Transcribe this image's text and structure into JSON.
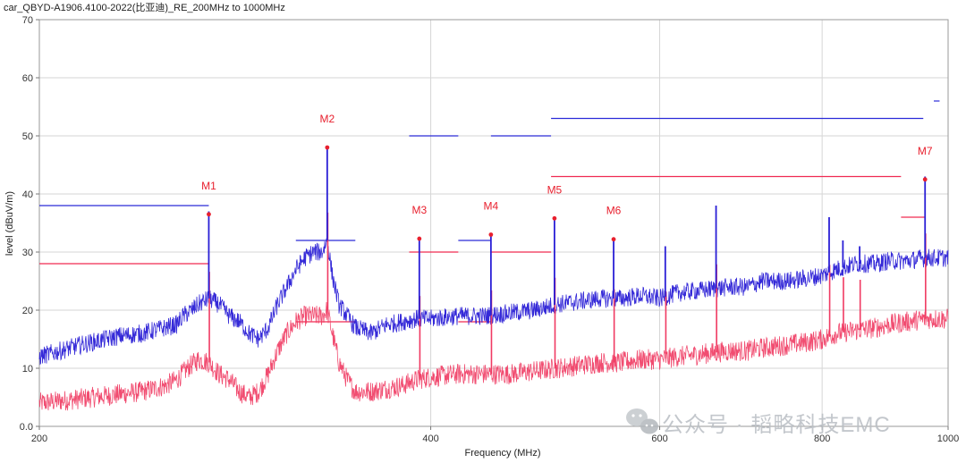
{
  "chart_data": {
    "type": "line",
    "title": "car_QBYD-A1906.4100-2022(比亚迪)_RE_200MHz to 1000MHz",
    "xlabel": "Frequency (MHz)",
    "ylabel": "level (dBuV/m)",
    "xlim": [
      200,
      1000
    ],
    "ylim": [
      0,
      70
    ],
    "x_scale": "log",
    "x_ticks": [
      {
        "value": 200,
        "label": "200"
      },
      {
        "value": 400,
        "label": "400"
      },
      {
        "value": 600,
        "label": "600"
      },
      {
        "value": 800,
        "label": "800"
      },
      {
        "value": 1000,
        "label": "1000"
      }
    ],
    "y_ticks": [
      {
        "value": 0,
        "label": "0.0"
      },
      {
        "value": 10,
        "label": "10"
      },
      {
        "value": 20,
        "label": "20"
      },
      {
        "value": 30,
        "label": "30"
      },
      {
        "value": 40,
        "label": "40"
      },
      {
        "value": 50,
        "label": "50"
      },
      {
        "value": 60,
        "label": "60"
      },
      {
        "value": 70,
        "label": "70"
      }
    ],
    "grid": true,
    "series": [
      {
        "color": "#2a1fd6",
        "points": [
          [
            200,
            12
          ],
          [
            215,
            14
          ],
          [
            230,
            15.5
          ],
          [
            240,
            16
          ],
          [
            250,
            17
          ],
          [
            255,
            17.5
          ],
          [
            258,
            19
          ],
          [
            260,
            19.5
          ],
          [
            262,
            20
          ],
          [
            265,
            21
          ],
          [
            270,
            22
          ],
          [
            275,
            21
          ],
          [
            280,
            19
          ],
          [
            285,
            18
          ],
          [
            290,
            16
          ],
          [
            295,
            15
          ],
          [
            300,
            17
          ],
          [
            305,
            21
          ],
          [
            310,
            24
          ],
          [
            315,
            27
          ],
          [
            320,
            29
          ],
          [
            325,
            30
          ],
          [
            330,
            30
          ],
          [
            333,
            32
          ],
          [
            336,
            26
          ],
          [
            340,
            21
          ],
          [
            345,
            19
          ],
          [
            350,
            17
          ],
          [
            360,
            16
          ],
          [
            370,
            17.5
          ],
          [
            380,
            18
          ],
          [
            390,
            18.5
          ],
          [
            400,
            18.5
          ],
          [
            420,
            19
          ],
          [
            440,
            19
          ],
          [
            460,
            19.5
          ],
          [
            480,
            20
          ],
          [
            500,
            21
          ],
          [
            520,
            21.5
          ],
          [
            540,
            22
          ],
          [
            560,
            22
          ],
          [
            580,
            22.5
          ],
          [
            600,
            22
          ],
          [
            620,
            23
          ],
          [
            650,
            23.5
          ],
          [
            680,
            24
          ],
          [
            700,
            24
          ],
          [
            720,
            25
          ],
          [
            750,
            25
          ],
          [
            780,
            25.5
          ],
          [
            800,
            26
          ],
          [
            820,
            27
          ],
          [
            850,
            28
          ],
          [
            880,
            28
          ],
          [
            900,
            28.5
          ],
          [
            930,
            28.5
          ],
          [
            960,
            29
          ],
          [
            1000,
            29
          ]
        ]
      },
      {
        "color": "#f03a62",
        "points": [
          [
            200,
            4
          ],
          [
            210,
            4.5
          ],
          [
            220,
            5
          ],
          [
            230,
            5.5
          ],
          [
            240,
            6
          ],
          [
            250,
            7
          ],
          [
            255,
            8
          ],
          [
            260,
            10
          ],
          [
            265,
            11.5
          ],
          [
            270,
            11
          ],
          [
            275,
            9
          ],
          [
            280,
            8
          ],
          [
            285,
            6
          ],
          [
            290,
            5
          ],
          [
            295,
            6
          ],
          [
            300,
            9
          ],
          [
            305,
            13
          ],
          [
            310,
            16
          ],
          [
            315,
            18
          ],
          [
            320,
            19
          ],
          [
            325,
            19
          ],
          [
            330,
            19
          ],
          [
            333,
            20
          ],
          [
            336,
            16
          ],
          [
            340,
            11
          ],
          [
            345,
            8
          ],
          [
            350,
            6
          ],
          [
            360,
            6
          ],
          [
            370,
            6.5
          ],
          [
            380,
            7
          ],
          [
            390,
            8
          ],
          [
            400,
            8.5
          ],
          [
            420,
            9
          ],
          [
            440,
            9
          ],
          [
            460,
            9
          ],
          [
            480,
            9.5
          ],
          [
            500,
            10
          ],
          [
            520,
            10.5
          ],
          [
            540,
            11
          ],
          [
            560,
            11
          ],
          [
            580,
            11.5
          ],
          [
            600,
            11.5
          ],
          [
            620,
            12
          ],
          [
            650,
            12.5
          ],
          [
            680,
            13
          ],
          [
            700,
            13
          ],
          [
            720,
            13.5
          ],
          [
            750,
            14
          ],
          [
            780,
            14.5
          ],
          [
            800,
            15
          ],
          [
            820,
            16
          ],
          [
            850,
            16.5
          ],
          [
            880,
            17
          ],
          [
            900,
            17.5
          ],
          [
            930,
            18
          ],
          [
            960,
            18.5
          ],
          [
            1000,
            18.5
          ]
        ]
      }
    ],
    "peak_spikes": [
      {
        "x": 270,
        "y": 37
      },
      {
        "x": 333,
        "y": 48
      },
      {
        "x": 392,
        "y": 32
      },
      {
        "x": 445,
        "y": 33
      },
      {
        "x": 498,
        "y": 36
      },
      {
        "x": 553,
        "y": 32
      },
      {
        "x": 606,
        "y": 31
      },
      {
        "x": 663,
        "y": 38
      },
      {
        "x": 810,
        "y": 36
      },
      {
        "x": 830,
        "y": 32
      },
      {
        "x": 855,
        "y": 31
      },
      {
        "x": 960,
        "y": 43
      }
    ],
    "limit_lines": [
      {
        "color": "#2a2ad8",
        "segments": [
          [
            [
              200,
              38
            ],
            [
              270,
              38
            ]
          ],
          [
            [
              315,
              32
            ],
            [
              350,
              32
            ]
          ],
          [
            [
              385,
              50
            ],
            [
              420,
              50
            ]
          ],
          [
            [
              420,
              32
            ],
            [
              445,
              32
            ]
          ],
          [
            [
              445,
              50
            ],
            [
              495,
              50
            ]
          ],
          [
            [
              495,
              53
            ],
            [
              957,
              53
            ]
          ],
          [
            [
              975,
              56
            ],
            [
              985,
              56
            ]
          ]
        ]
      },
      {
        "color": "#f02a52",
        "segments": [
          [
            [
              200,
              28
            ],
            [
              270,
              28
            ]
          ],
          [
            [
              315,
              18
            ],
            [
              350,
              18
            ]
          ],
          [
            [
              385,
              30
            ],
            [
              420,
              30
            ]
          ],
          [
            [
              420,
              18
            ],
            [
              445,
              18
            ]
          ],
          [
            [
              445,
              30
            ],
            [
              495,
              30
            ]
          ],
          [
            [
              495,
              43
            ],
            [
              920,
              43
            ]
          ],
          [
            [
              920,
              36
            ],
            [
              960,
              36
            ]
          ]
        ]
      }
    ],
    "markers": [
      {
        "label": "M1",
        "x": 270,
        "y": 36.5
      },
      {
        "label": "M2",
        "x": 333,
        "y": 48
      },
      {
        "label": "M3",
        "x": 392,
        "y": 32.3
      },
      {
        "label": "M4",
        "x": 445,
        "y": 33
      },
      {
        "label": "M5",
        "x": 498,
        "y": 35.8
      },
      {
        "label": "M6",
        "x": 553,
        "y": 32.2
      },
      {
        "label": "M7",
        "x": 960,
        "y": 42.5
      }
    ]
  },
  "watermark": {
    "text": "公众号 · 韬略科技EMC",
    "icon": "wechat-icon"
  }
}
